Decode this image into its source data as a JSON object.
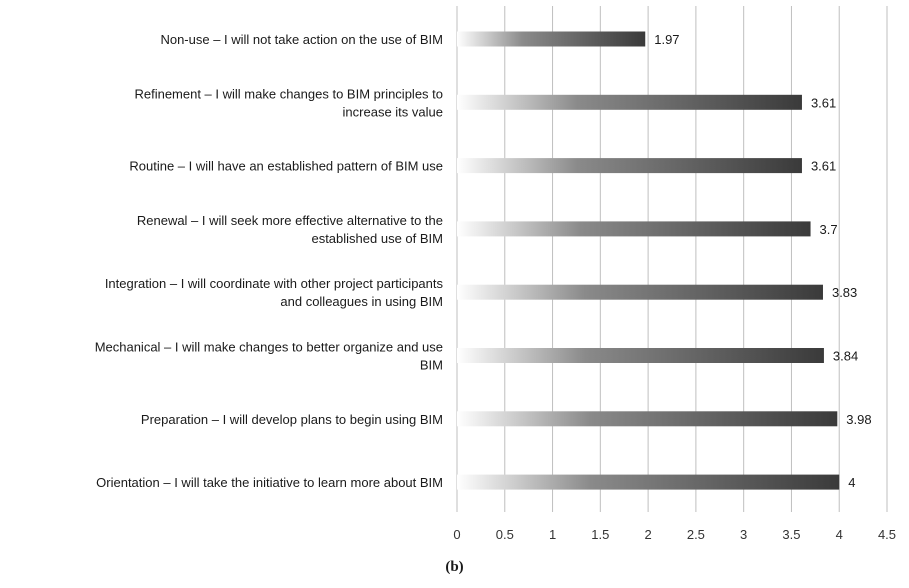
{
  "caption": "(b)",
  "chart_data": {
    "type": "bar",
    "orientation": "horizontal",
    "title": "",
    "xlabel": "",
    "ylabel": "",
    "xlim": [
      0,
      4.5
    ],
    "x_ticks": [
      "0",
      "0.5",
      "1",
      "1.5",
      "2",
      "2.5",
      "3",
      "3.5",
      "4",
      "4.5"
    ],
    "grid": true,
    "categories": [
      [
        "Non-use – I will not take action on the use of BIM"
      ],
      [
        "Refinement – I will make changes to BIM principles to",
        "increase its value"
      ],
      [
        "Routine – I will have an established pattern of BIM use"
      ],
      [
        "Renewal – I will seek more effective alternative to the",
        "established use of BIM"
      ],
      [
        "Integration – I will coordinate with other project participants",
        "and colleagues in using BIM"
      ],
      [
        "Mechanical – I will make changes to better organize and use",
        "BIM"
      ],
      [
        "Preparation – I will develop plans to begin using BIM"
      ],
      [
        "Orientation – I will take the initiative to learn more about BIM"
      ]
    ],
    "values": [
      1.97,
      3.61,
      3.61,
      3.7,
      3.83,
      3.84,
      3.98,
      4
    ],
    "data_labels": [
      "1.97",
      "3.61",
      "3.61",
      "3.7",
      "3.83",
      "3.84",
      "3.98",
      "4"
    ],
    "bar_color": "#3a3a3a",
    "grid_color": "#bfbfbf"
  }
}
